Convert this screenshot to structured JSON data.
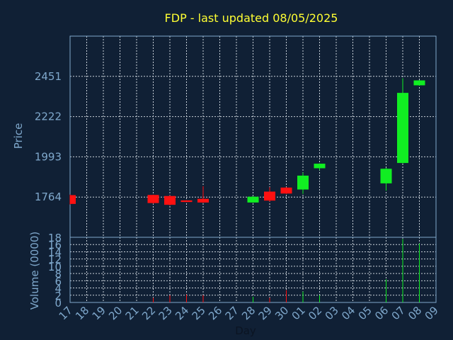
{
  "chart_data": {
    "type": "candlestick",
    "title": "FDP - last updated 08/05/2025",
    "price_axis": {
      "label": "Price",
      "ticks": [
        1764,
        1993,
        2222,
        2451
      ],
      "range": [
        1535,
        2680
      ]
    },
    "volume_axis": {
      "label": "Volume (0000)",
      "ticks": [
        0,
        2,
        4,
        6,
        8,
        10,
        12,
        14,
        16,
        18
      ],
      "range": [
        0,
        18
      ]
    },
    "xlabel": "Day",
    "x_ticks": [
      "17",
      "18",
      "19",
      "20",
      "21",
      "22",
      "23",
      "24",
      "25",
      "26",
      "27",
      "28",
      "29",
      "30",
      "01",
      "02",
      "03",
      "04",
      "05",
      "06",
      "07",
      "08",
      "09"
    ],
    "candles": [
      {
        "day": "17",
        "open": 1775,
        "close": 1725,
        "high": 1778,
        "low": 1722,
        "volume": 0,
        "up": false
      },
      {
        "day": "22",
        "open": 1776,
        "close": 1730,
        "high": 1778,
        "low": 1726,
        "volume": 1.3,
        "up": false
      },
      {
        "day": "23",
        "open": 1770,
        "close": 1720,
        "high": 1774,
        "low": 1716,
        "volume": 2.0,
        "up": false
      },
      {
        "day": "24",
        "open": 1745,
        "close": 1736,
        "high": 1746,
        "low": 1735,
        "volume": 2.2,
        "up": false
      },
      {
        "day": "25",
        "open": 1754,
        "close": 1733,
        "high": 1826,
        "low": 1730,
        "volume": 2.0,
        "up": false
      },
      {
        "day": "28",
        "open": 1733,
        "close": 1766,
        "high": 1770,
        "low": 1731,
        "volume": 1.6,
        "up": true
      },
      {
        "day": "29",
        "open": 1795,
        "close": 1744,
        "high": 1820,
        "low": 1738,
        "volume": 1.3,
        "up": false
      },
      {
        "day": "30",
        "open": 1818,
        "close": 1784,
        "high": 1820,
        "low": 1782,
        "volume": 3.4,
        "up": false
      },
      {
        "day": "01",
        "open": 1807,
        "close": 1886,
        "high": 1904,
        "low": 1782,
        "volume": 3.0,
        "up": true
      },
      {
        "day": "02",
        "open": 1928,
        "close": 1954,
        "high": 1956,
        "low": 1917,
        "volume": 2.0,
        "up": true
      },
      {
        "day": "06",
        "open": 1842,
        "close": 1925,
        "high": 1930,
        "low": 1800,
        "volume": 6.4,
        "up": true
      },
      {
        "day": "07",
        "open": 1958,
        "close": 2357,
        "high": 2440,
        "low": 1955,
        "volume": 17.5,
        "up": true
      },
      {
        "day": "08",
        "open": 2400,
        "close": 2428,
        "high": 2430,
        "low": 2398,
        "volume": 16.3,
        "up": true
      }
    ],
    "grid": true,
    "colors": {
      "background": "#102035",
      "plot_background": "#102035",
      "grid": "#c8d0d8",
      "up": "#11ee22",
      "down": "#ff1111",
      "title": "#ffff33",
      "axis_text": "#7fa8cc",
      "frame": "#7fa8cc"
    }
  }
}
